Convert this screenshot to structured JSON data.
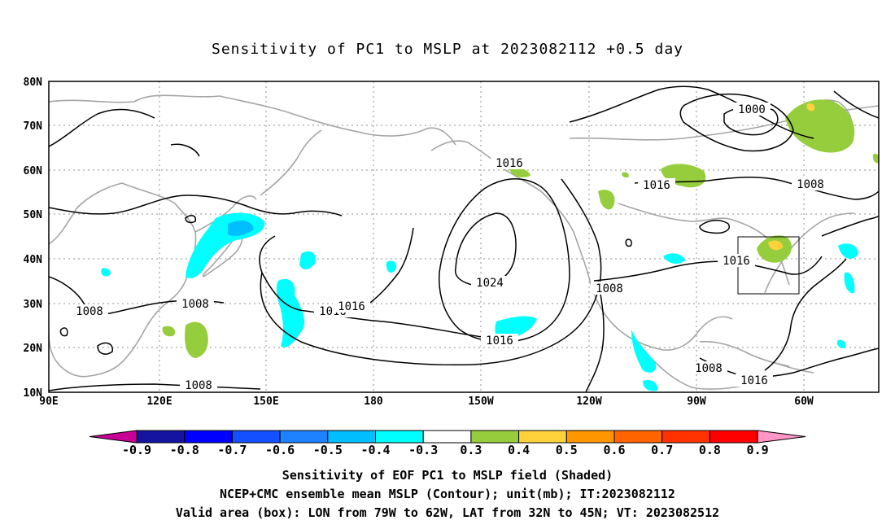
{
  "title": "Sensitivity of PC1 to MSLP at 2023082112 +0.5 day",
  "lat_labels": [
    "80N",
    "70N",
    "60N",
    "50N",
    "40N",
    "30N",
    "20N",
    "10N"
  ],
  "lon_labels": [
    "90E",
    "120E",
    "150E",
    "180",
    "150W",
    "120W",
    "90W",
    "60W"
  ],
  "contour_labels": [
    "1000",
    "1016",
    "1008",
    "1016",
    "1016",
    "1024",
    "1016",
    "1016",
    "1008",
    "1016",
    "1008",
    "1008",
    "1008",
    "1008",
    "1016"
  ],
  "colorbar": {
    "labels": [
      "-0.9",
      "-0.8",
      "-0.7",
      "-0.6",
      "-0.5",
      "-0.4",
      "-0.3",
      "0.3",
      "0.4",
      "0.5",
      "0.6",
      "0.7",
      "0.8",
      "0.9"
    ],
    "colors": [
      "#1414a0",
      "#0000ff",
      "#1450ff",
      "#1e82ff",
      "#00beff",
      "#00ffff",
      "#ffffff",
      "#96cd3c",
      "#ffd23c",
      "#ff9600",
      "#ff6400",
      "#ff3200",
      "#ff0000"
    ],
    "left_arrow_color": "#c80096",
    "right_arrow_color": "#ff96c8"
  },
  "captions": [
    "Sensitivity of EOF PC1 to MSLP field (Shaded)",
    "NCEP+CMC ensemble mean MSLP (Contour); unit(mb); IT:2023082112",
    "Valid area (box): LON from 79W to 62W, LAT from 32N to 45N; VT: 2023082512"
  ],
  "map": {
    "lon_range": [
      90,
      300
    ],
    "lat_range": [
      10,
      80
    ],
    "valid_box": {
      "lon": [
        281,
        298
      ],
      "lat": [
        32,
        45
      ]
    },
    "coastline_color": "#a0a0a0",
    "contour_color": "#000000",
    "grid": true
  }
}
